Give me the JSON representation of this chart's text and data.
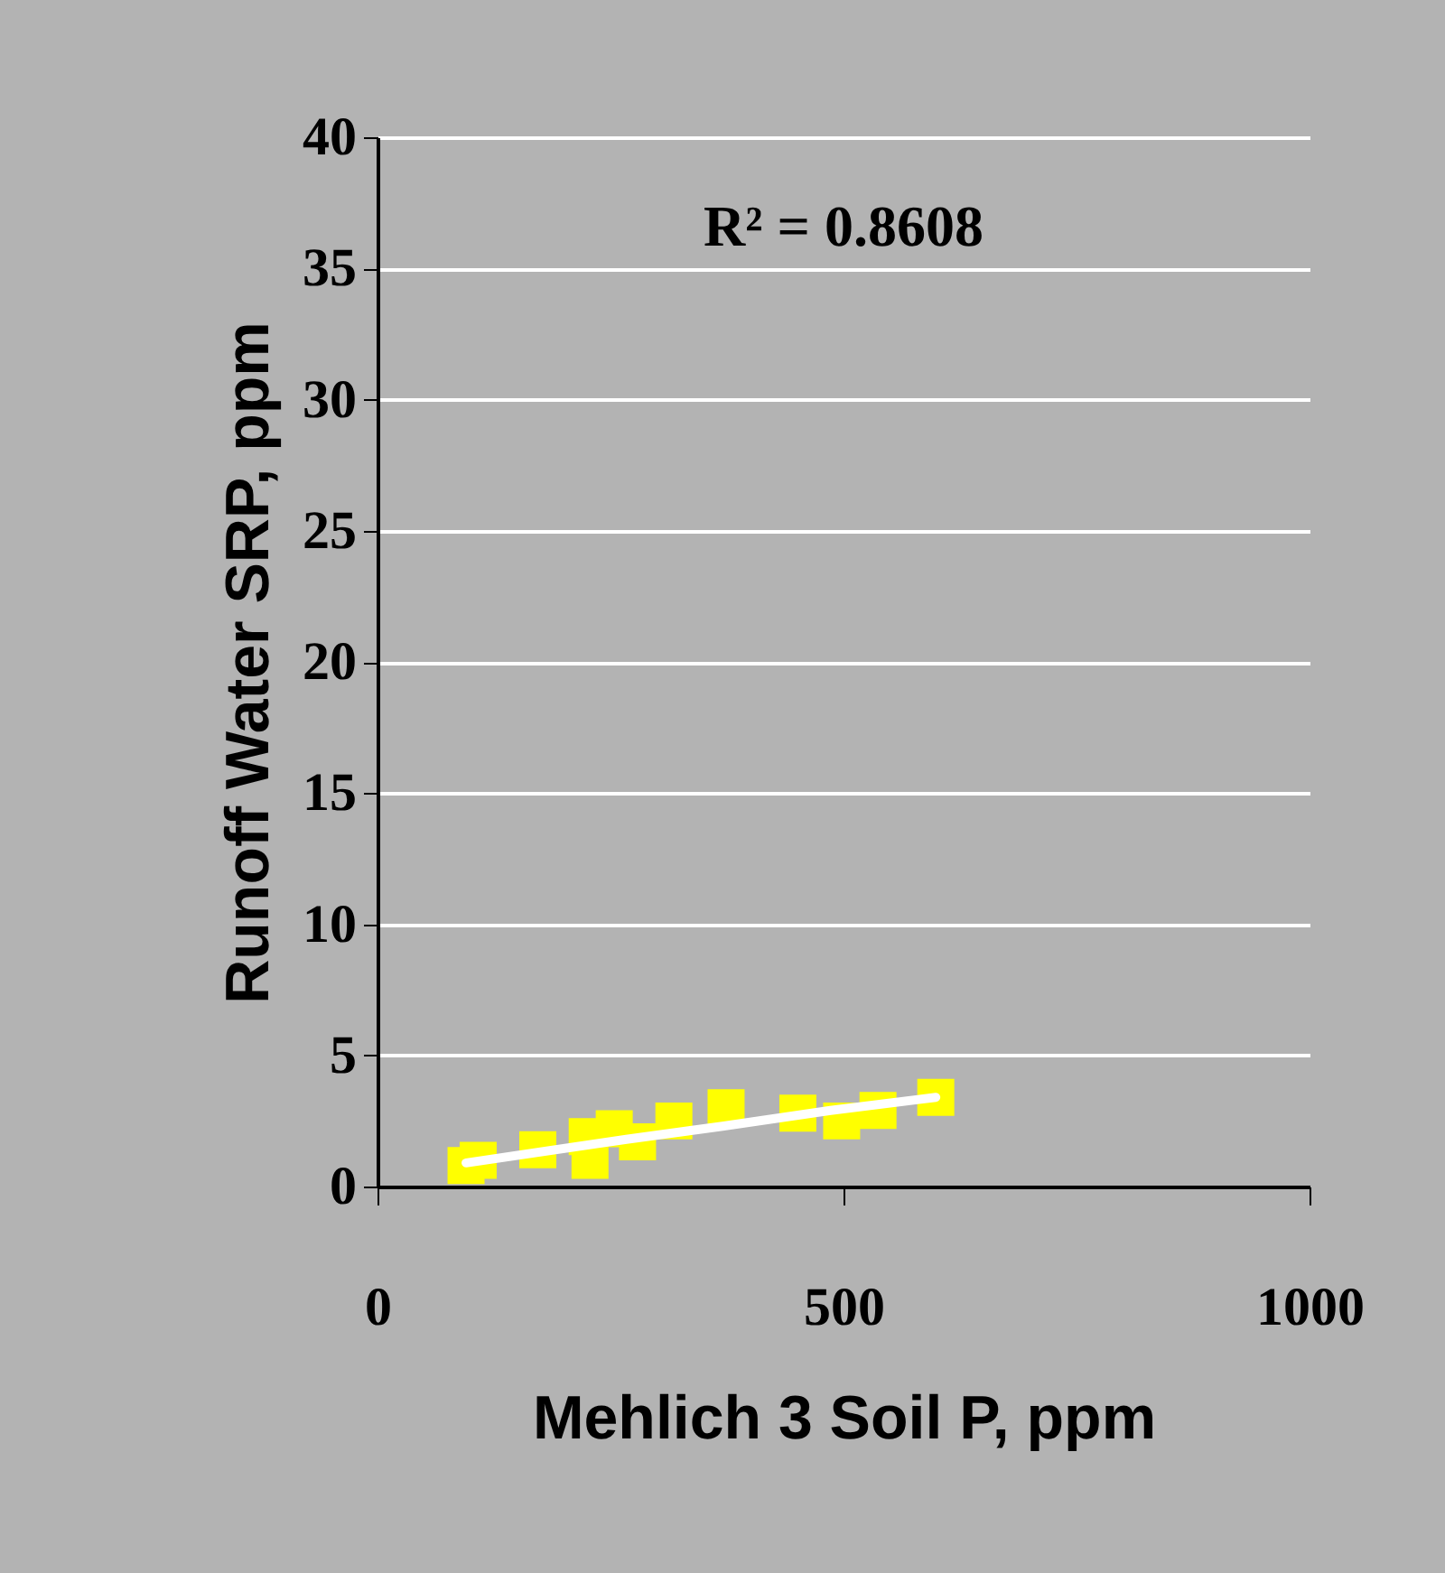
{
  "chart_data": {
    "type": "scatter",
    "xlabel": "Mehlich 3 Soil P, ppm",
    "ylabel": "Runoff Water SRP, ppm",
    "xlim": [
      0,
      1000
    ],
    "xticks": [
      0,
      500,
      1000
    ],
    "ylim": [
      0,
      40
    ],
    "yticks": [
      0,
      5,
      10,
      15,
      20,
      25,
      30,
      35,
      40
    ],
    "grid": "y",
    "annotations": [
      "R² = 0.8608"
    ],
    "series": [
      {
        "color": "#ffff00",
        "marker": "square",
        "x": [
          95,
          108,
          172,
          225,
          228,
          254,
          279,
          318,
          374,
          451,
          498,
          537,
          599
        ],
        "values": [
          0.8,
          1.0,
          1.4,
          1.9,
          1.0,
          2.2,
          1.7,
          2.5,
          3.0,
          2.8,
          2.5,
          2.9,
          3.4
        ]
      },
      {
        "type": "line",
        "color": "#ffffff",
        "x": [
          95,
          267,
          370,
          486,
          599
        ],
        "values": [
          0.9,
          1.8,
          2.3,
          2.9,
          3.4
        ]
      }
    ]
  }
}
